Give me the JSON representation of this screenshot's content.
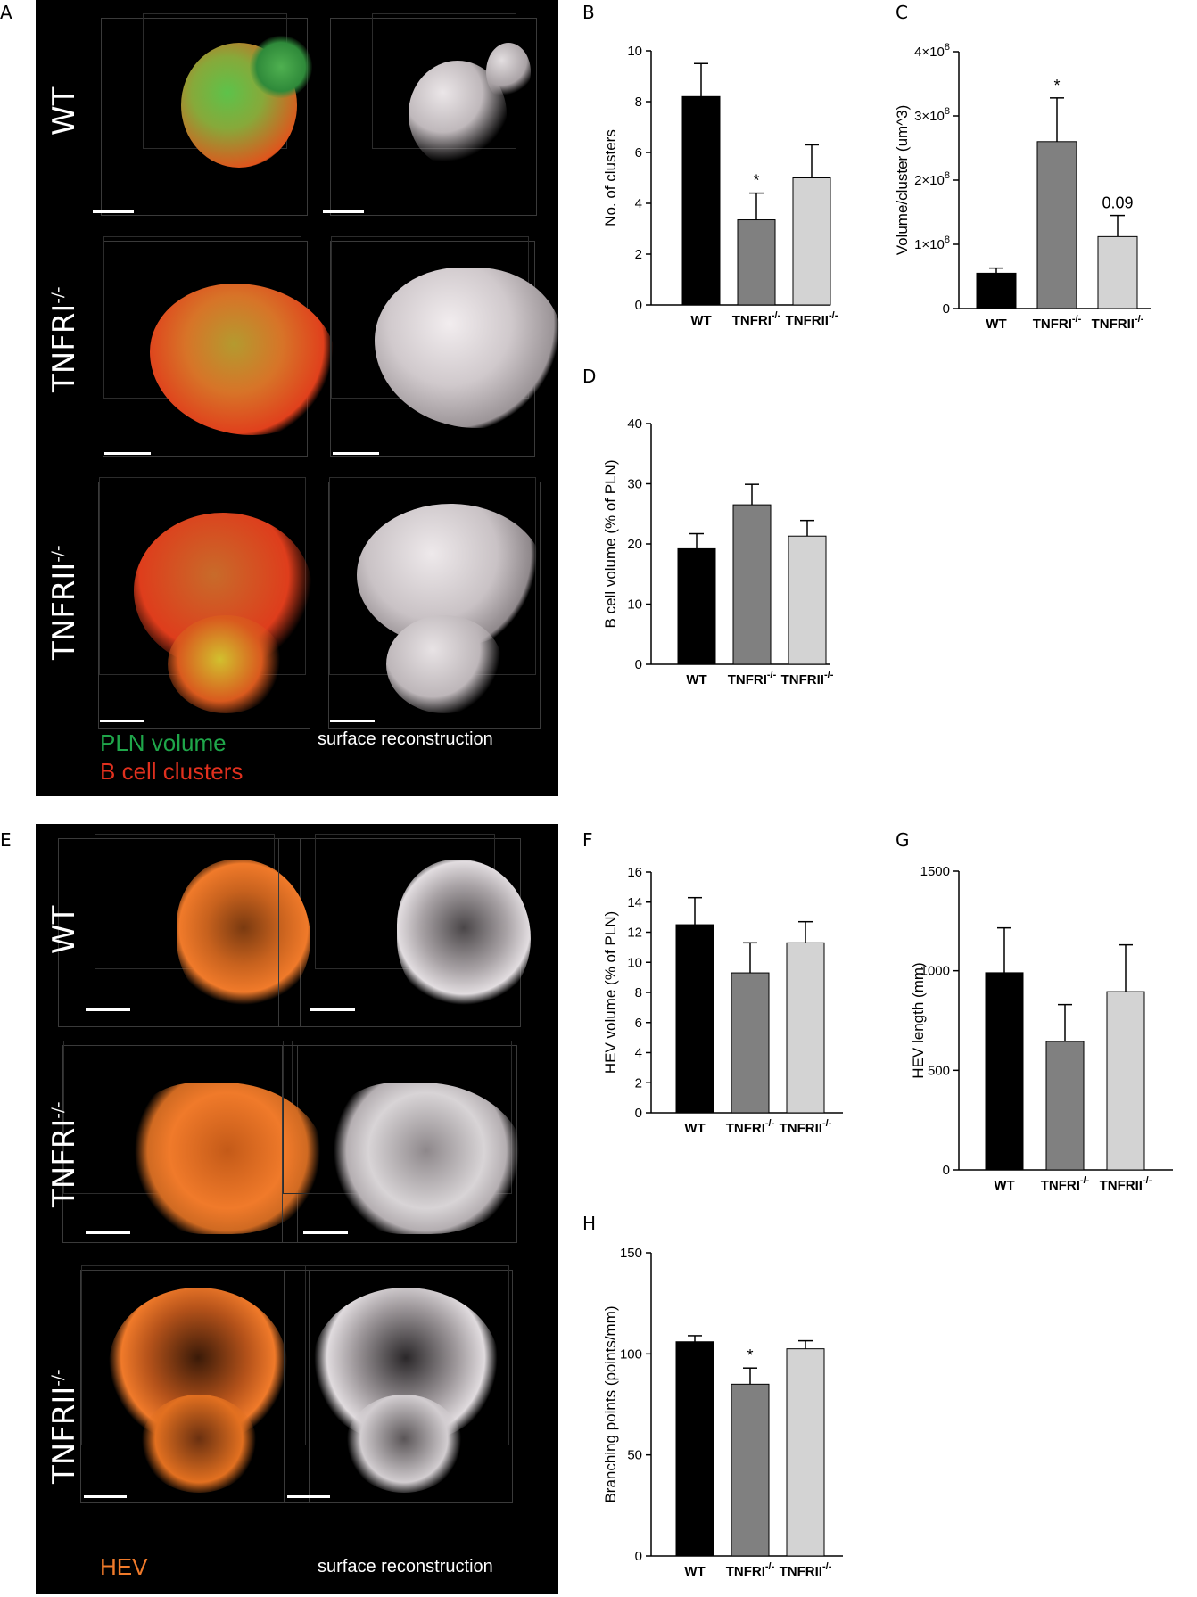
{
  "panels": {
    "A": "A",
    "B": "B",
    "C": "C",
    "D": "D",
    "E": "E",
    "F": "F",
    "G": "G",
    "H": "H"
  },
  "micrograph_A": {
    "rows": [
      {
        "label": "WT",
        "sup": ""
      },
      {
        "label": "TNFRI",
        "sup": "-/-"
      },
      {
        "label": "TNFRII",
        "sup": "-/-"
      }
    ],
    "legend_line1": "PLN volume",
    "legend_line2": "B cell  clusters",
    "right_caption": "surface reconstruction",
    "colors": {
      "pln": "#1fa64a",
      "bcell": "#e0301e",
      "surface": "#cfc9cb"
    }
  },
  "micrograph_E": {
    "rows": [
      {
        "label": "WT",
        "sup": ""
      },
      {
        "label": "TNFRI",
        "sup": "-/-"
      },
      {
        "label": "TNFRII",
        "sup": "-/-"
      }
    ],
    "legend": "HEV",
    "right_caption": "surface reconstruction",
    "colors": {
      "hev": "#f07a2a",
      "surface": "#d8d4d6"
    }
  },
  "chart_data": [
    {
      "id": "B",
      "type": "bar",
      "categories": [
        {
          "base": "WT",
          "sup": ""
        },
        {
          "base": "TNFRI",
          "sup": "-/-"
        },
        {
          "base": "TNFRII",
          "sup": "-/-"
        }
      ],
      "values": [
        8.2,
        3.35,
        5.0
      ],
      "errors": [
        1.3,
        1.05,
        1.3
      ],
      "annotations": [
        "",
        "*",
        ""
      ],
      "ylabel": "No. of clusters",
      "ylim": [
        0,
        10
      ],
      "yticks": [
        "0",
        "2",
        "4",
        "6",
        "8",
        "10"
      ],
      "colors": [
        "#000000",
        "#808080",
        "#d3d3d3"
      ]
    },
    {
      "id": "C",
      "type": "bar",
      "categories": [
        {
          "base": "WT",
          "sup": ""
        },
        {
          "base": "TNFRI",
          "sup": "-/-"
        },
        {
          "base": "TNFRII",
          "sup": "-/-"
        }
      ],
      "values": [
        55000000,
        260000000,
        112000000
      ],
      "errors": [
        8000000,
        68000000,
        33000000
      ],
      "annotations": [
        "",
        "*",
        "0.09"
      ],
      "ylabel": "Volume/cluster (um^3)",
      "ylim": [
        0,
        400000000
      ],
      "yticks": [
        "0",
        "1×10^8",
        "2×10^8",
        "3×10^8",
        "4×10^8"
      ],
      "colors": [
        "#000000",
        "#808080",
        "#d3d3d3"
      ]
    },
    {
      "id": "D",
      "type": "bar",
      "categories": [
        {
          "base": "WT",
          "sup": ""
        },
        {
          "base": "TNFRI",
          "sup": "-/-"
        },
        {
          "base": "TNFRII",
          "sup": "-/-"
        }
      ],
      "values": [
        19.2,
        26.5,
        21.3
      ],
      "errors": [
        2.5,
        3.4,
        2.6
      ],
      "annotations": [
        "",
        "",
        ""
      ],
      "ylabel": "B cell volume (% of PLN)",
      "ylim": [
        0,
        40
      ],
      "yticks": [
        "0",
        "10",
        "20",
        "30",
        "40"
      ],
      "colors": [
        "#000000",
        "#808080",
        "#d3d3d3"
      ]
    },
    {
      "id": "F",
      "type": "bar",
      "categories": [
        {
          "base": "WT",
          "sup": ""
        },
        {
          "base": "TNFRI",
          "sup": "-/-"
        },
        {
          "base": "TNFRII",
          "sup": "-/-"
        }
      ],
      "values": [
        12.5,
        9.3,
        11.3
      ],
      "errors": [
        1.8,
        2.0,
        1.4
      ],
      "annotations": [
        "",
        "",
        ""
      ],
      "ylabel": "HEV volume (% of PLN)",
      "ylim": [
        0,
        16
      ],
      "yticks": [
        "0",
        "2",
        "4",
        "6",
        "8",
        "10",
        "12",
        "14",
        "16"
      ],
      "colors": [
        "#000000",
        "#808080",
        "#d3d3d3"
      ]
    },
    {
      "id": "G",
      "type": "bar",
      "categories": [
        {
          "base": "WT",
          "sup": ""
        },
        {
          "base": "TNFRI",
          "sup": "-/-"
        },
        {
          "base": "TNFRII",
          "sup": "-/-"
        }
      ],
      "values": [
        990,
        645,
        895
      ],
      "errors": [
        225,
        185,
        235
      ],
      "annotations": [
        "",
        "",
        ""
      ],
      "ylabel": "HEV length (mm)",
      "ylim": [
        0,
        1500
      ],
      "yticks": [
        "0",
        "500",
        "1000",
        "1500"
      ],
      "colors": [
        "#000000",
        "#808080",
        "#d3d3d3"
      ]
    },
    {
      "id": "H",
      "type": "bar",
      "categories": [
        {
          "base": "WT",
          "sup": ""
        },
        {
          "base": "TNFRI",
          "sup": "-/-"
        },
        {
          "base": "TNFRII",
          "sup": "-/-"
        }
      ],
      "values": [
        106,
        85,
        102.5
      ],
      "errors": [
        3,
        8,
        4
      ],
      "annotations": [
        "",
        "*",
        ""
      ],
      "ylabel": "Branching points (points/mm)",
      "ylim": [
        0,
        150
      ],
      "yticks": [
        "0",
        "50",
        "100",
        "150"
      ],
      "colors": [
        "#000000",
        "#808080",
        "#d3d3d3"
      ]
    }
  ]
}
